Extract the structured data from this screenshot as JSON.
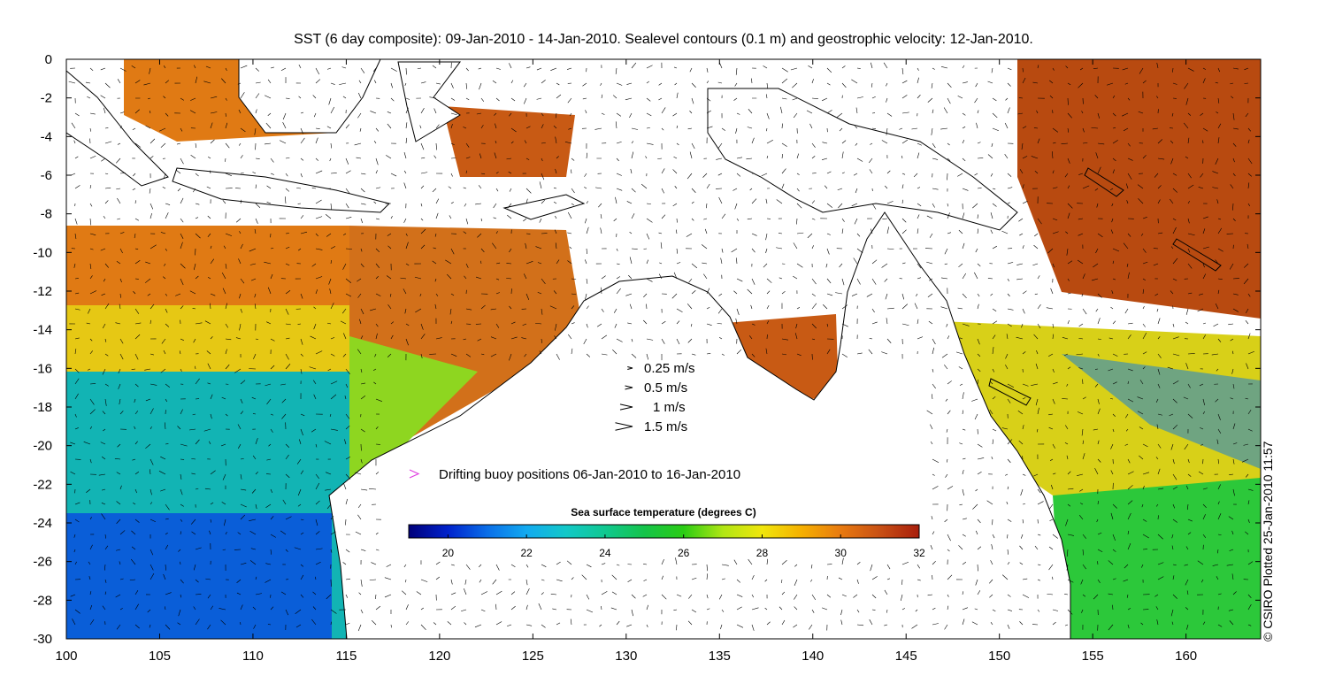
{
  "title": "SST (6 day composite): 09-Jan-2010 - 14-Jan-2010. Sealevel contours (0.1 m) and geostrophic velocity: 12-Jan-2010.",
  "axes": {
    "x_ticks": [
      "100",
      "105",
      "110",
      "115",
      "120",
      "125",
      "130",
      "135",
      "140",
      "145",
      "150",
      "155",
      "160"
    ],
    "y_ticks": [
      "0",
      "-2",
      "-4",
      "-6",
      "-8",
      "-10",
      "-12",
      "-14",
      "-16",
      "-18",
      "-20",
      "-22",
      "-24",
      "-26",
      "-28",
      "-30"
    ],
    "lon_range": [
      100,
      164
    ],
    "lat_range": [
      -30,
      0
    ]
  },
  "velocity_legend": [
    {
      "label": "0.25 m/s",
      "speed": 0.25
    },
    {
      "label": "0.5 m/s",
      "speed": 0.5
    },
    {
      "label": "1 m/s",
      "speed": 1.0
    },
    {
      "label": "1.5 m/s",
      "speed": 1.5
    }
  ],
  "buoy_legend": {
    "label": "Drifting buoy positions 06-Jan-2010 to 16-Jan-2010",
    "color": "#e040e0"
  },
  "colorbar": {
    "title": "Sea surface temperature (degrees C)",
    "ticks": [
      "20",
      "22",
      "24",
      "26",
      "28",
      "30",
      "32"
    ],
    "range": [
      19,
      32
    ],
    "colors": [
      "#00007a",
      "#0022cc",
      "#0a6ee8",
      "#12aaf0",
      "#12c8c8",
      "#10c890",
      "#14c44a",
      "#2acc14",
      "#b0e614",
      "#f0e60c",
      "#f5b000",
      "#e87a10",
      "#c85014",
      "#a81e0c"
    ]
  },
  "credit": "© CSIRO Plotted 25-Jan-2010 11:57"
}
